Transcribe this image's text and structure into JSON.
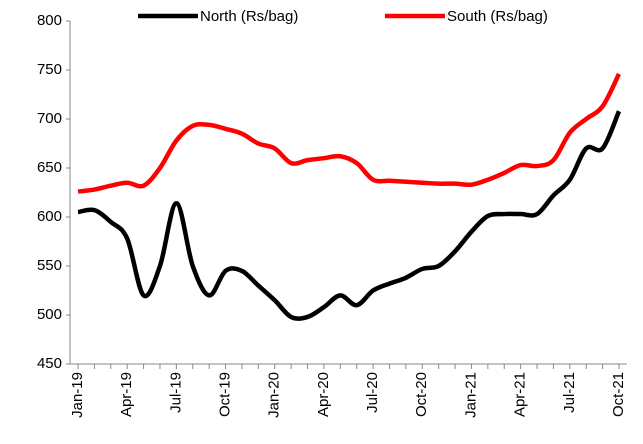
{
  "chart_data": {
    "type": "line",
    "categories": [
      "Jan-19",
      null,
      null,
      "Apr-19",
      null,
      null,
      "Jul-19",
      null,
      null,
      "Oct-19",
      null,
      null,
      "Jan-20",
      null,
      null,
      "Apr-20",
      null,
      null,
      "Jul-20",
      null,
      null,
      "Oct-20",
      null,
      null,
      "Jan-21",
      null,
      null,
      "Apr-21",
      null,
      null,
      "Jul-21",
      null,
      null,
      "Oct-21"
    ],
    "series": [
      {
        "name": "North (Rs/bag)",
        "color": "#000000",
        "values": [
          605,
          607,
          595,
          578,
          520,
          550,
          614,
          550,
          520,
          545,
          545,
          530,
          515,
          498,
          498,
          508,
          520,
          510,
          525,
          532,
          538,
          547,
          550,
          565,
          585,
          601,
          603,
          603,
          603,
          622,
          638,
          670,
          670,
          708
        ]
      },
      {
        "name": "South (Rs/bag)",
        "color": "#ff0000",
        "values": [
          626,
          628,
          632,
          635,
          632,
          650,
          678,
          693,
          694,
          690,
          685,
          675,
          670,
          655,
          658,
          660,
          662,
          655,
          638,
          637,
          636,
          635,
          634,
          634,
          633,
          638,
          645,
          653,
          652,
          658,
          686,
          700,
          713,
          746
        ]
      }
    ],
    "ylim": [
      450,
      800
    ],
    "yticks": [
      450,
      500,
      550,
      600,
      650,
      700,
      750,
      800
    ],
    "legend": "top"
  }
}
